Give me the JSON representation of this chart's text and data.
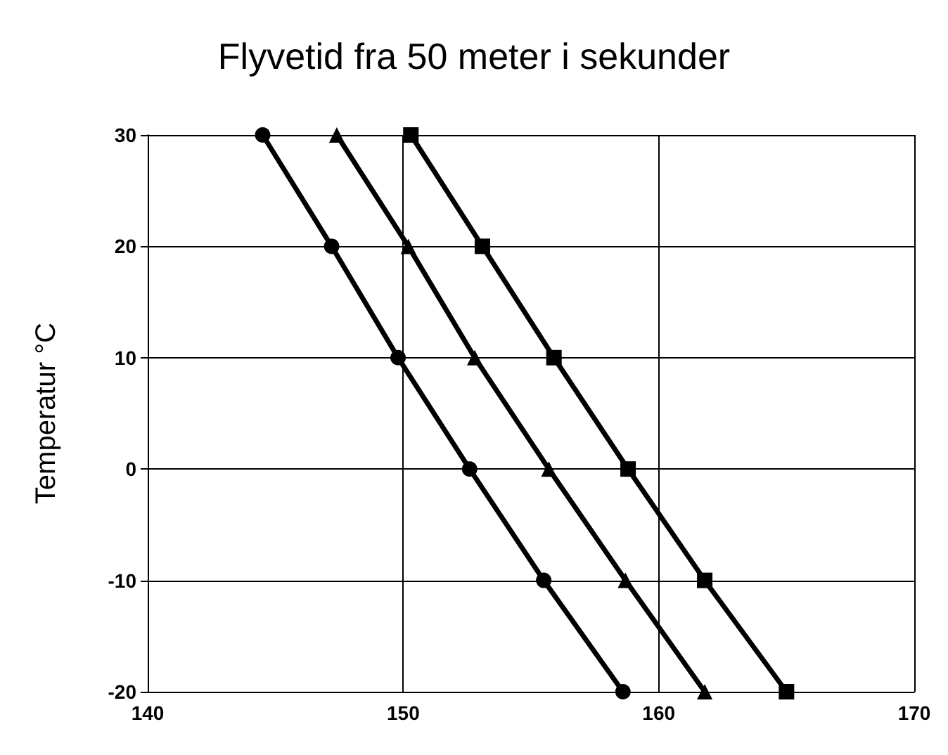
{
  "chart_data": {
    "type": "line",
    "title": "Flyvetid fra 50 meter i sekunder",
    "ylabel": "Temperatur °C",
    "series": [
      {
        "color": "#000000",
        "marker": "circle",
        "x": [
          144.5,
          147.2,
          149.8,
          152.6,
          155.5,
          158.6
        ],
        "values": [
          30,
          20,
          10,
          0,
          -10,
          -20
        ]
      },
      {
        "color": "#000000",
        "marker": "triangle",
        "x": [
          147.4,
          150.2,
          152.8,
          155.7,
          158.7,
          161.8
        ],
        "values": [
          30,
          20,
          10,
          0,
          -10,
          -20
        ]
      },
      {
        "color": "#000000",
        "marker": "square",
        "x": [
          150.3,
          153.1,
          155.9,
          158.8,
          161.8,
          165.0
        ],
        "values": [
          30,
          20,
          10,
          0,
          -10,
          -20
        ]
      }
    ],
    "xlim": [
      140,
      170
    ],
    "xticks": [
      140,
      150,
      160,
      170
    ],
    "ylim": [
      -20,
      30
    ],
    "yticks": [
      -20,
      -10,
      0,
      10,
      20,
      30
    ],
    "grid": true,
    "line_style": "solid"
  }
}
